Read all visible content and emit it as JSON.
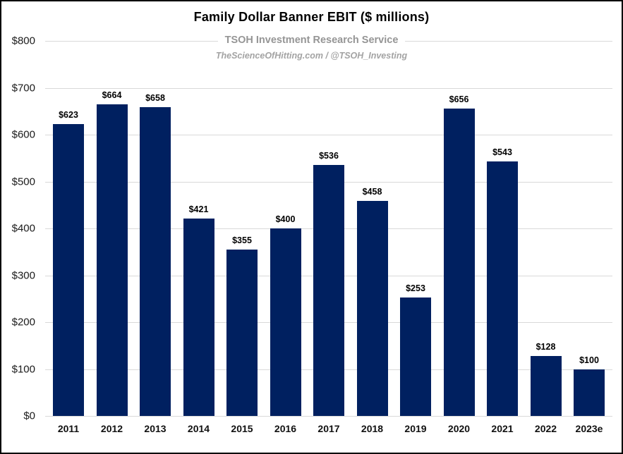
{
  "header": {
    "title": "Family Dollar Banner EBIT ($ millions)",
    "subtitle": "TSOH Investment Research Service",
    "tagline": "TheScienceOfHitting.com / @TSOH_Investing"
  },
  "colors": {
    "bar": "#002060",
    "gridline": "#d9d9d9",
    "title_text": "#000000",
    "subtitle_text": "#959595",
    "tagline_text": "#a3a3a3",
    "tick_text": "#1a1a1a"
  },
  "chart_data": {
    "type": "bar",
    "title": "Family Dollar Banner EBIT ($ millions)",
    "xlabel": "",
    "ylabel": "",
    "categories": [
      "2011",
      "2012",
      "2013",
      "2014",
      "2015",
      "2016",
      "2017",
      "2018",
      "2019",
      "2020",
      "2021",
      "2022",
      "2023e"
    ],
    "values": [
      623,
      664,
      658,
      421,
      355,
      400,
      536,
      458,
      253,
      656,
      543,
      128,
      100
    ],
    "bar_labels": [
      "$623",
      "$664",
      "$658",
      "$421",
      "$355",
      "$400",
      "$536",
      "$458",
      "$253",
      "$656",
      "$543",
      "$128",
      "$100"
    ],
    "ylim": [
      0,
      800
    ],
    "ytick_step": 100,
    "ytick_labels": [
      "$0",
      "$100",
      "$200",
      "$300",
      "$400",
      "$500",
      "$600",
      "$700",
      "$800"
    ],
    "grid": true,
    "legend": false
  }
}
